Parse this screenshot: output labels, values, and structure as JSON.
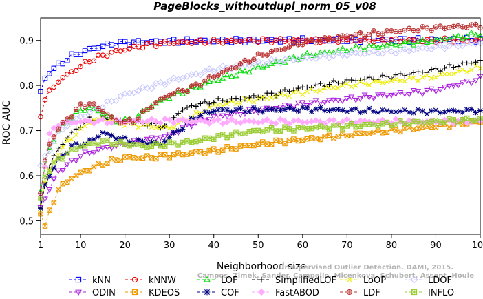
{
  "chart_data": {
    "type": "line",
    "title": "PageBlocks_withoutdupl_norm_05_v08",
    "xlabel": "Neighborhood size",
    "ylabel": "ROC AUC",
    "xlim": [
      1,
      100
    ],
    "ylim": [
      0.47,
      0.95
    ],
    "x_ticks": [
      1,
      10,
      20,
      30,
      40,
      50,
      60,
      70,
      80,
      90,
      100
    ],
    "y_ticks": [
      0.5,
      0.6,
      0.7,
      0.8,
      0.9
    ],
    "grid": false,
    "legend_position": "bottom",
    "watermark": [
      "Campos, Zimek, Sander, Campello, Micenkova, Schubert, Assent, Houle",
      "Unsupervised Outlier Detection. DAMI, 2015."
    ],
    "series": [
      {
        "name": "kNN",
        "color": "#0000ff",
        "marker": "square",
        "anchors": [
          [
            1,
            0.785
          ],
          [
            2,
            0.815
          ],
          [
            3,
            0.83
          ],
          [
            5,
            0.845
          ],
          [
            8,
            0.865
          ],
          [
            12,
            0.88
          ],
          [
            16,
            0.89
          ],
          [
            20,
            0.895
          ],
          [
            30,
            0.898
          ],
          [
            50,
            0.9
          ],
          [
            70,
            0.901
          ],
          [
            100,
            0.901
          ]
        ]
      },
      {
        "name": "kNNW",
        "color": "#ee0000",
        "marker": "circle",
        "anchors": [
          [
            1,
            0.735
          ],
          [
            2,
            0.77
          ],
          [
            3,
            0.785
          ],
          [
            5,
            0.81
          ],
          [
            8,
            0.83
          ],
          [
            12,
            0.855
          ],
          [
            16,
            0.87
          ],
          [
            20,
            0.88
          ],
          [
            25,
            0.89
          ],
          [
            30,
            0.895
          ],
          [
            50,
            0.9
          ],
          [
            70,
            0.9
          ],
          [
            100,
            0.9
          ]
        ]
      },
      {
        "name": "LOF",
        "color": "#00dd00",
        "marker": "triangle-up",
        "anchors": [
          [
            1,
            0.565
          ],
          [
            2,
            0.62
          ],
          [
            3,
            0.66
          ],
          [
            5,
            0.7
          ],
          [
            8,
            0.73
          ],
          [
            10,
            0.745
          ],
          [
            12,
            0.75
          ],
          [
            15,
            0.74
          ],
          [
            18,
            0.72
          ],
          [
            22,
            0.725
          ],
          [
            26,
            0.755
          ],
          [
            30,
            0.775
          ],
          [
            40,
            0.81
          ],
          [
            50,
            0.84
          ],
          [
            60,
            0.865
          ],
          [
            70,
            0.88
          ],
          [
            80,
            0.89
          ],
          [
            90,
            0.9
          ],
          [
            100,
            0.915
          ]
        ]
      },
      {
        "name": "SimplifiedLOF",
        "color": "#000000",
        "marker": "plus",
        "anchors": [
          [
            1,
            0.525
          ],
          [
            2,
            0.59
          ],
          [
            3,
            0.62
          ],
          [
            5,
            0.66
          ],
          [
            8,
            0.695
          ],
          [
            10,
            0.71
          ],
          [
            12,
            0.725
          ],
          [
            15,
            0.725
          ],
          [
            20,
            0.72
          ],
          [
            25,
            0.715
          ],
          [
            29,
            0.71
          ],
          [
            32,
            0.74
          ],
          [
            35,
            0.755
          ],
          [
            40,
            0.765
          ],
          [
            50,
            0.775
          ],
          [
            60,
            0.795
          ],
          [
            70,
            0.81
          ],
          [
            80,
            0.82
          ],
          [
            90,
            0.835
          ],
          [
            100,
            0.855
          ]
        ]
      },
      {
        "name": "LoOP",
        "color": "#eeee00",
        "marker": "x",
        "anchors": [
          [
            1,
            0.525
          ],
          [
            2,
            0.585
          ],
          [
            3,
            0.61
          ],
          [
            5,
            0.65
          ],
          [
            8,
            0.685
          ],
          [
            10,
            0.7
          ],
          [
            12,
            0.72
          ],
          [
            15,
            0.725
          ],
          [
            20,
            0.715
          ],
          [
            25,
            0.71
          ],
          [
            30,
            0.705
          ],
          [
            35,
            0.73
          ],
          [
            40,
            0.755
          ],
          [
            50,
            0.77
          ],
          [
            60,
            0.785
          ],
          [
            70,
            0.8
          ],
          [
            80,
            0.81
          ],
          [
            90,
            0.82
          ],
          [
            100,
            0.84
          ]
        ]
      },
      {
        "name": "LDOF",
        "color": "#c8c8ff",
        "marker": "diamond",
        "anchors": [
          [
            1,
            0.62
          ],
          [
            3,
            0.66
          ],
          [
            5,
            0.695
          ],
          [
            8,
            0.72
          ],
          [
            12,
            0.74
          ],
          [
            16,
            0.76
          ],
          [
            20,
            0.78
          ],
          [
            30,
            0.81
          ],
          [
            40,
            0.835
          ],
          [
            50,
            0.85
          ],
          [
            60,
            0.86
          ],
          [
            70,
            0.87
          ],
          [
            80,
            0.875
          ],
          [
            90,
            0.885
          ],
          [
            100,
            0.895
          ]
        ]
      },
      {
        "name": "ODIN",
        "color": "#aa22dd",
        "marker": "triangle-down",
        "anchors": [
          [
            1,
            0.53
          ],
          [
            3,
            0.57
          ],
          [
            5,
            0.61
          ],
          [
            8,
            0.63
          ],
          [
            10,
            0.645
          ],
          [
            15,
            0.66
          ],
          [
            20,
            0.67
          ],
          [
            25,
            0.68
          ],
          [
            30,
            0.69
          ],
          [
            35,
            0.715
          ],
          [
            40,
            0.73
          ],
          [
            50,
            0.745
          ],
          [
            60,
            0.76
          ],
          [
            70,
            0.77
          ],
          [
            80,
            0.78
          ],
          [
            90,
            0.79
          ],
          [
            100,
            0.815
          ]
        ]
      },
      {
        "name": "KDEOS",
        "color": "#ee9900",
        "marker": "square-x",
        "anchors": [
          [
            1,
            0.52
          ],
          [
            2,
            0.485
          ],
          [
            3,
            0.52
          ],
          [
            5,
            0.57
          ],
          [
            8,
            0.595
          ],
          [
            12,
            0.615
          ],
          [
            16,
            0.63
          ],
          [
            20,
            0.64
          ],
          [
            25,
            0.64
          ],
          [
            30,
            0.645
          ],
          [
            40,
            0.655
          ],
          [
            50,
            0.67
          ],
          [
            60,
            0.68
          ],
          [
            70,
            0.69
          ],
          [
            80,
            0.7
          ],
          [
            90,
            0.71
          ],
          [
            100,
            0.72
          ]
        ]
      },
      {
        "name": "COF",
        "color": "#000080",
        "marker": "asterisk",
        "anchors": [
          [
            1,
            0.525
          ],
          [
            2,
            0.58
          ],
          [
            3,
            0.6
          ],
          [
            5,
            0.635
          ],
          [
            8,
            0.665
          ],
          [
            10,
            0.67
          ],
          [
            12,
            0.675
          ],
          [
            15,
            0.695
          ],
          [
            18,
            0.685
          ],
          [
            22,
            0.675
          ],
          [
            25,
            0.675
          ],
          [
            28,
            0.67
          ],
          [
            32,
            0.7
          ],
          [
            36,
            0.73
          ],
          [
            40,
            0.745
          ],
          [
            50,
            0.745
          ],
          [
            60,
            0.748
          ],
          [
            70,
            0.745
          ],
          [
            80,
            0.743
          ],
          [
            90,
            0.742
          ],
          [
            100,
            0.745
          ]
        ]
      },
      {
        "name": "FastABOD",
        "color": "#ffaaff",
        "marker": "diamond-filled",
        "anchors": [
          [
            1,
            0.56
          ],
          [
            3,
            0.69
          ],
          [
            5,
            0.715
          ],
          [
            10,
            0.72
          ],
          [
            20,
            0.72
          ],
          [
            30,
            0.722
          ],
          [
            40,
            0.72
          ],
          [
            50,
            0.72
          ],
          [
            60,
            0.72
          ],
          [
            70,
            0.72
          ],
          [
            80,
            0.72
          ],
          [
            90,
            0.72
          ],
          [
            100,
            0.72
          ]
        ]
      },
      {
        "name": "LDF",
        "color": "#bb3333",
        "marker": "circle-plus",
        "anchors": [
          [
            1,
            0.56
          ],
          [
            2,
            0.63
          ],
          [
            3,
            0.67
          ],
          [
            5,
            0.705
          ],
          [
            8,
            0.735
          ],
          [
            10,
            0.755
          ],
          [
            12,
            0.76
          ],
          [
            15,
            0.745
          ],
          [
            18,
            0.72
          ],
          [
            22,
            0.72
          ],
          [
            26,
            0.755
          ],
          [
            30,
            0.78
          ],
          [
            35,
            0.795
          ],
          [
            40,
            0.82
          ],
          [
            50,
            0.865
          ],
          [
            60,
            0.895
          ],
          [
            70,
            0.91
          ],
          [
            80,
            0.92
          ],
          [
            90,
            0.928
          ],
          [
            100,
            0.933
          ]
        ]
      },
      {
        "name": "INFLO",
        "color": "#99cc33",
        "marker": "square-cross",
        "anchors": [
          [
            1,
            0.545
          ],
          [
            2,
            0.6
          ],
          [
            3,
            0.615
          ],
          [
            5,
            0.635
          ],
          [
            8,
            0.655
          ],
          [
            10,
            0.665
          ],
          [
            15,
            0.675
          ],
          [
            20,
            0.67
          ],
          [
            25,
            0.665
          ],
          [
            30,
            0.67
          ],
          [
            35,
            0.675
          ],
          [
            40,
            0.685
          ],
          [
            50,
            0.7
          ],
          [
            60,
            0.705
          ],
          [
            70,
            0.71
          ],
          [
            80,
            0.715
          ],
          [
            90,
            0.72
          ],
          [
            100,
            0.725
          ]
        ]
      }
    ]
  }
}
